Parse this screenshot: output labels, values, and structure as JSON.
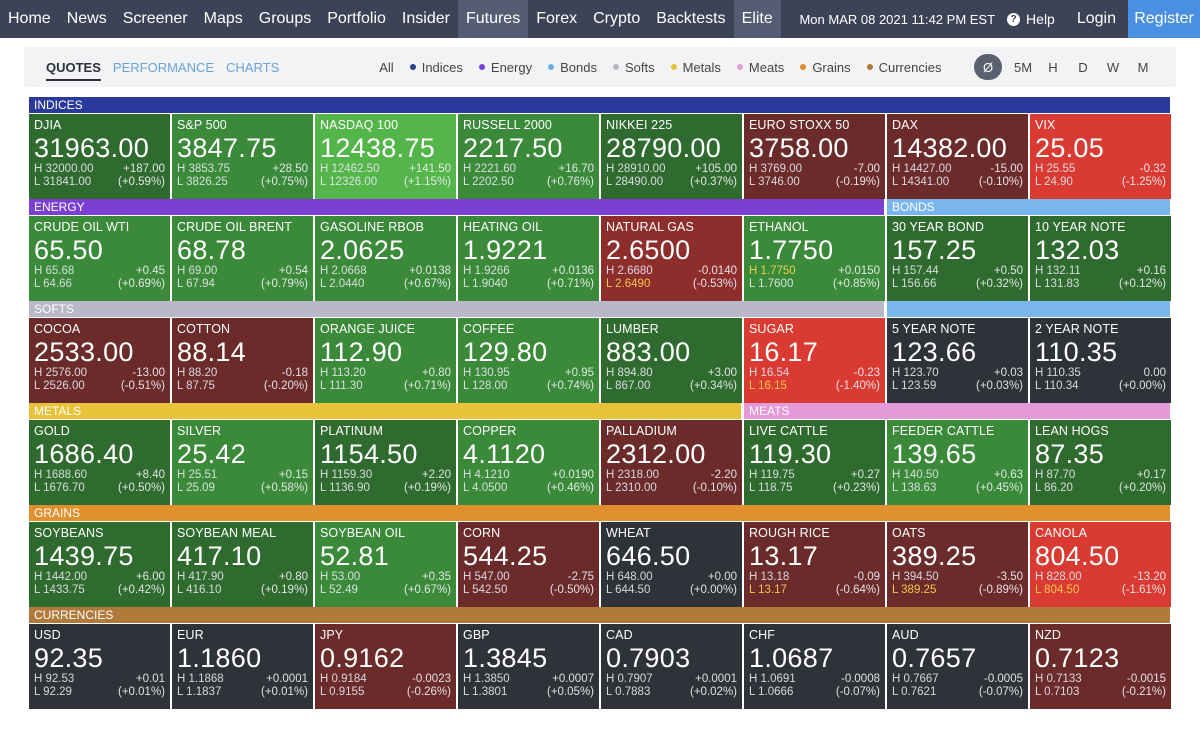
{
  "nav": {
    "items": [
      "Home",
      "News",
      "Screener",
      "Maps",
      "Groups",
      "Portfolio",
      "Insider",
      "Futures",
      "Forex",
      "Crypto",
      "Backtests",
      "Elite"
    ],
    "active": "Futures",
    "datetime": "Mon MAR 08 2021 11:42 PM EST",
    "help": "Help",
    "login": "Login",
    "register": "Register"
  },
  "subnav": {
    "views": [
      "QUOTES",
      "PERFORMANCE",
      "CHARTS"
    ],
    "active_view": "QUOTES",
    "filters": [
      {
        "label": "All",
        "color": ""
      },
      {
        "label": "Indices",
        "color": "#2c3e8f"
      },
      {
        "label": "Energy",
        "color": "#7b3fd4"
      },
      {
        "label": "Bonds",
        "color": "#6aaee8"
      },
      {
        "label": "Softs",
        "color": "#b8b8c4"
      },
      {
        "label": "Metals",
        "color": "#e8c33a"
      },
      {
        "label": "Meats",
        "color": "#e59ad8"
      },
      {
        "label": "Grains",
        "color": "#e08a2c"
      },
      {
        "label": "Currencies",
        "color": "#b07a3a"
      }
    ],
    "timeframes": [
      "Ø",
      "5M",
      "H",
      "D",
      "W",
      "M"
    ],
    "active_timeframe": "Ø"
  },
  "sections": [
    {
      "id": "indices",
      "label": "INDICES",
      "color": "#2a3a9c"
    },
    {
      "id": "energy",
      "label": "ENERGY",
      "color": "#7b3fd4"
    },
    {
      "id": "bonds",
      "label": "BONDS",
      "color": "#7ab6ee"
    },
    {
      "id": "softs",
      "label": "SOFTS",
      "color": "#b8b8c8"
    },
    {
      "id": "bonds2",
      "label": "",
      "color": "#7ab6ee"
    },
    {
      "id": "metals",
      "label": "METALS",
      "color": "#e8c33a"
    },
    {
      "id": "meats",
      "label": "MEATS",
      "color": "#e59ad8"
    },
    {
      "id": "grains",
      "label": "GRAINS",
      "color": "#e0902e"
    },
    {
      "id": "currencies",
      "label": "CURRENCIES",
      "color": "#b07a3a"
    }
  ],
  "tiles": [
    {
      "name": "DJIA",
      "price": "31963.00",
      "high": "H 32000.00",
      "low": "L 31841.00",
      "chg": "+187.00",
      "pct": "(+0.59%)",
      "color": "c-g1"
    },
    {
      "name": "S&P 500",
      "price": "3847.75",
      "high": "H 3853.75",
      "low": "L 3826.25",
      "chg": "+28.50",
      "pct": "(+0.75%)",
      "color": "c-g2"
    },
    {
      "name": "NASDAQ 100",
      "price": "12438.75",
      "high": "H 12462.50",
      "low": "L 12326.00",
      "chg": "+141.50",
      "pct": "(+1.15%)",
      "color": "c-g3"
    },
    {
      "name": "RUSSELL 2000",
      "price": "2217.50",
      "high": "H 2221.60",
      "low": "L 2202.50",
      "chg": "+16.70",
      "pct": "(+0.76%)",
      "color": "c-g2"
    },
    {
      "name": "NIKKEI 225",
      "price": "28790.00",
      "high": "H 28910.00",
      "low": "L 28490.00",
      "chg": "+105.00",
      "pct": "(+0.37%)",
      "color": "c-g1"
    },
    {
      "name": "EURO STOXX 50",
      "price": "3758.00",
      "high": "H 3769.00",
      "low": "L 3746.00",
      "chg": "-7.00",
      "pct": "(-0.19%)",
      "color": "c-r1"
    },
    {
      "name": "DAX",
      "price": "14382.00",
      "high": "H 14427.00",
      "low": "L 14341.00",
      "chg": "-15.00",
      "pct": "(-0.10%)",
      "color": "c-r1"
    },
    {
      "name": "VIX",
      "price": "25.05",
      "high": "H 25.55",
      "low": "L 24.90",
      "chg": "-0.32",
      "pct": "(-1.25%)",
      "color": "c-r3"
    },
    {
      "name": "CRUDE OIL WTI",
      "price": "65.50",
      "high": "H 65.68",
      "low": "L 64.66",
      "chg": "+0.45",
      "pct": "(+0.69%)",
      "color": "c-g2"
    },
    {
      "name": "CRUDE OIL BRENT",
      "price": "68.78",
      "high": "H 69.00",
      "low": "L 67.94",
      "chg": "+0.54",
      "pct": "(+0.79%)",
      "color": "c-g2"
    },
    {
      "name": "GASOLINE RBOB",
      "price": "2.0625",
      "high": "H 2.0668",
      "low": "L 2.0440",
      "chg": "+0.0138",
      "pct": "(+0.67%)",
      "color": "c-g2"
    },
    {
      "name": "HEATING OIL",
      "price": "1.9221",
      "high": "H 1.9266",
      "low": "L 1.9040",
      "chg": "+0.0136",
      "pct": "(+0.71%)",
      "color": "c-g2"
    },
    {
      "name": "NATURAL GAS",
      "price": "2.6500",
      "high": "H 2.6680",
      "low": "L 2.6490",
      "chg": "-0.0140",
      "pct": "(-0.53%)",
      "color": "c-r2",
      "low_hot": true
    },
    {
      "name": "ETHANOL",
      "price": "1.7750",
      "high": "H 1.7750",
      "low": "L 1.7600",
      "chg": "+0.0150",
      "pct": "(+0.85%)",
      "color": "c-g2",
      "high_hot": true
    },
    {
      "name": "30 YEAR BOND",
      "price": "157.25",
      "high": "H 157.44",
      "low": "L 156.66",
      "chg": "+0.50",
      "pct": "(+0.32%)",
      "color": "c-g1"
    },
    {
      "name": "10 YEAR NOTE",
      "price": "132.03",
      "high": "H 132.11",
      "low": "L 131.83",
      "chg": "+0.16",
      "pct": "(+0.12%)",
      "color": "c-g1"
    },
    {
      "name": "COCOA",
      "price": "2533.00",
      "high": "H 2576.00",
      "low": "L 2526.00",
      "chg": "-13.00",
      "pct": "(-0.51%)",
      "color": "c-r1"
    },
    {
      "name": "COTTON",
      "price": "88.14",
      "high": "H 88.20",
      "low": "L 87.75",
      "chg": "-0.18",
      "pct": "(-0.20%)",
      "color": "c-r1"
    },
    {
      "name": "ORANGE JUICE",
      "price": "112.90",
      "high": "H 113.20",
      "low": "L 111.30",
      "chg": "+0.80",
      "pct": "(+0.71%)",
      "color": "c-g2"
    },
    {
      "name": "COFFEE",
      "price": "129.80",
      "high": "H 130.95",
      "low": "L 128.00",
      "chg": "+0.95",
      "pct": "(+0.74%)",
      "color": "c-g2"
    },
    {
      "name": "LUMBER",
      "price": "883.00",
      "high": "H 894.80",
      "low": "L 867.00",
      "chg": "+3.00",
      "pct": "(+0.34%)",
      "color": "c-g1"
    },
    {
      "name": "SUGAR",
      "price": "16.17",
      "high": "H 16.54",
      "low": "L 16.15",
      "chg": "-0.23",
      "pct": "(-1.40%)",
      "color": "c-r3",
      "low_hot": true
    },
    {
      "name": "5 YEAR NOTE",
      "price": "123.66",
      "high": "H 123.70",
      "low": "L 123.59",
      "chg": "+0.03",
      "pct": "(+0.03%)",
      "color": "c-n"
    },
    {
      "name": "2 YEAR NOTE",
      "price": "110.35",
      "high": "H 110.35",
      "low": "L 110.34",
      "chg": "0.00",
      "pct": "(+0.00%)",
      "color": "c-n"
    },
    {
      "name": "GOLD",
      "price": "1686.40",
      "high": "H 1688.60",
      "low": "L 1676.70",
      "chg": "+8.40",
      "pct": "(+0.50%)",
      "color": "c-g1"
    },
    {
      "name": "SILVER",
      "price": "25.42",
      "high": "H 25.51",
      "low": "L 25.09",
      "chg": "+0.15",
      "pct": "(+0.58%)",
      "color": "c-g2"
    },
    {
      "name": "PLATINUM",
      "price": "1154.50",
      "high": "H 1159.30",
      "low": "L 1136.90",
      "chg": "+2.20",
      "pct": "(+0.19%)",
      "color": "c-g1"
    },
    {
      "name": "COPPER",
      "price": "4.1120",
      "high": "H 4.1210",
      "low": "L 4.0500",
      "chg": "+0.0190",
      "pct": "(+0.46%)",
      "color": "c-g2"
    },
    {
      "name": "PALLADIUM",
      "price": "2312.00",
      "high": "H 2318.00",
      "low": "L 2310.00",
      "chg": "-2.20",
      "pct": "(-0.10%)",
      "color": "c-r1"
    },
    {
      "name": "LIVE CATTLE",
      "price": "119.30",
      "high": "H 119.75",
      "low": "L 118.75",
      "chg": "+0.27",
      "pct": "(+0.23%)",
      "color": "c-g1"
    },
    {
      "name": "FEEDER CATTLE",
      "price": "139.65",
      "high": "H 140.50",
      "low": "L 138.63",
      "chg": "+0.63",
      "pct": "(+0.45%)",
      "color": "c-g2"
    },
    {
      "name": "LEAN HOGS",
      "price": "87.35",
      "high": "H 87.70",
      "low": "L 86.20",
      "chg": "+0.17",
      "pct": "(+0.20%)",
      "color": "c-g1"
    },
    {
      "name": "SOYBEANS",
      "price": "1439.75",
      "high": "H 1442.00",
      "low": "L 1433.75",
      "chg": "+6.00",
      "pct": "(+0.42%)",
      "color": "c-g1"
    },
    {
      "name": "SOYBEAN MEAL",
      "price": "417.10",
      "high": "H 417.90",
      "low": "L 416.10",
      "chg": "+0.80",
      "pct": "(+0.19%)",
      "color": "c-g1"
    },
    {
      "name": "SOYBEAN OIL",
      "price": "52.81",
      "high": "H 53.00",
      "low": "L 52.49",
      "chg": "+0.35",
      "pct": "(+0.67%)",
      "color": "c-g2"
    },
    {
      "name": "CORN",
      "price": "544.25",
      "high": "H 547.00",
      "low": "L 542.50",
      "chg": "-2.75",
      "pct": "(-0.50%)",
      "color": "c-r1"
    },
    {
      "name": "WHEAT",
      "price": "646.50",
      "high": "H 648.00",
      "low": "L 644.50",
      "chg": "+0.00",
      "pct": "(+0.00%)",
      "color": "c-n"
    },
    {
      "name": "ROUGH RICE",
      "price": "13.17",
      "high": "H 13.18",
      "low": "L 13.17",
      "chg": "-0.09",
      "pct": "(-0.64%)",
      "color": "c-r1",
      "low_hot": true
    },
    {
      "name": "OATS",
      "price": "389.25",
      "high": "H 394.50",
      "low": "L 389.25",
      "chg": "-3.50",
      "pct": "(-0.89%)",
      "color": "c-r1",
      "low_hot": true
    },
    {
      "name": "CANOLA",
      "price": "804.50",
      "high": "H 828.00",
      "low": "L 804.50",
      "chg": "-13.20",
      "pct": "(-1.61%)",
      "color": "c-r3",
      "low_hot": true
    },
    {
      "name": "USD",
      "price": "92.35",
      "high": "H 92.53",
      "low": "L 92.29",
      "chg": "+0.01",
      "pct": "(+0.01%)",
      "color": "c-n"
    },
    {
      "name": "EUR",
      "price": "1.1860",
      "high": "H 1.1868",
      "low": "L 1.1837",
      "chg": "+0.0001",
      "pct": "(+0.01%)",
      "color": "c-n"
    },
    {
      "name": "JPY",
      "price": "0.9162",
      "high": "H 0.9184",
      "low": "L 0.9155",
      "chg": "-0.0023",
      "pct": "(-0.26%)",
      "color": "c-r1"
    },
    {
      "name": "GBP",
      "price": "1.3845",
      "high": "H 1.3850",
      "low": "L 1.3801",
      "chg": "+0.0007",
      "pct": "(+0.05%)",
      "color": "c-n"
    },
    {
      "name": "CAD",
      "price": "0.7903",
      "high": "H 0.7907",
      "low": "L 0.7883",
      "chg": "+0.0001",
      "pct": "(+0.02%)",
      "color": "c-n"
    },
    {
      "name": "CHF",
      "price": "1.0687",
      "high": "H 1.0691",
      "low": "L 1.0666",
      "chg": "-0.0008",
      "pct": "(-0.07%)",
      "color": "c-n"
    },
    {
      "name": "AUD",
      "price": "0.7657",
      "high": "H 0.7667",
      "low": "L 0.7621",
      "chg": "-0.0005",
      "pct": "(-0.07%)",
      "color": "c-n"
    },
    {
      "name": "NZD",
      "price": "0.7123",
      "high": "H 0.7133",
      "low": "L 0.7103",
      "chg": "-0.0015",
      "pct": "(-0.21%)",
      "color": "c-r1"
    }
  ]
}
